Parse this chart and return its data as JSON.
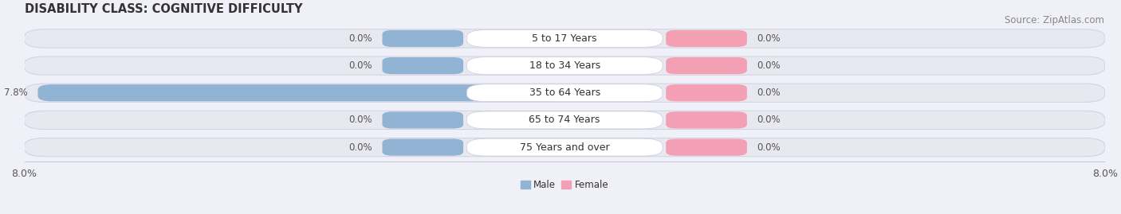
{
  "title": "DISABILITY CLASS: COGNITIVE DIFFICULTY",
  "source": "Source: ZipAtlas.com",
  "categories": [
    "5 to 17 Years",
    "18 to 34 Years",
    "35 to 64 Years",
    "65 to 74 Years",
    "75 Years and over"
  ],
  "male_values": [
    0.0,
    0.0,
    7.8,
    0.0,
    0.0
  ],
  "female_values": [
    0.0,
    0.0,
    0.0,
    0.0,
    0.0
  ],
  "male_color": "#92b4d4",
  "female_color": "#f4a0b4",
  "bar_bg_color": "#e8e8f0",
  "bar_outline_color": "#d0d0e0",
  "label_bg_color": "#ffffff",
  "x_max": 8.0,
  "x_min": -8.0,
  "title_fontsize": 10.5,
  "label_fontsize": 8.5,
  "cat_fontsize": 9,
  "tick_fontsize": 9,
  "source_fontsize": 8.5,
  "background_color": "#f0f0f8"
}
